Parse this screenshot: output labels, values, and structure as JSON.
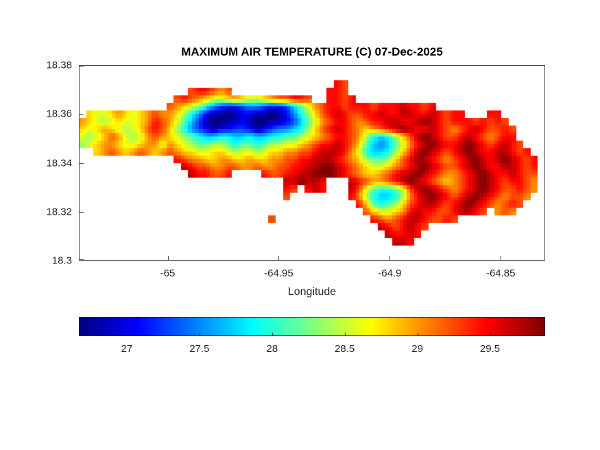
{
  "figure": {
    "background": "#ffffff",
    "axis_color": "#262626"
  },
  "chart_data": {
    "type": "heatmap",
    "title": "MAXIMUM AIR TEMPERATURE (C) 07-Dec-2025",
    "xlabel": "Longitude",
    "ylabel": "",
    "x_range": [
      -65.04,
      -64.83
    ],
    "y_range": [
      18.3,
      18.38
    ],
    "x_ticks": [
      -65,
      -64.95,
      -64.9,
      -64.85
    ],
    "x_tick_labels": [
      "-65",
      "-64.95",
      "-64.9",
      "-64.85"
    ],
    "y_ticks": [
      18.38,
      18.36,
      18.34,
      18.32,
      18.3
    ],
    "y_tick_labels": [
      "18.38",
      "18.36",
      "18.34",
      "18.32",
      "18.3"
    ],
    "colormap": "jet",
    "color_range": [
      26.67,
      29.88
    ],
    "colorbar": {
      "orientation": "horizontal",
      "ticks": [
        27,
        27.5,
        28,
        28.5,
        29,
        29.5
      ],
      "tick_labels": [
        "27",
        "27.5",
        "28",
        "28.5",
        "29",
        "29.5"
      ]
    },
    "grid_cols": 64,
    "grid_encoding": {
      "ocean_char": ".",
      "chars": "0123456789abcdef",
      "value_min": 26.6,
      "value_step": 0.22,
      "units": "C"
    },
    "grid_rows": [
      "................................................................",
      "................................................................",
      "...................................dc...........................",
      "...............cddcbc.............ddc...........................",
      ".............cdcba99aba99abccddc..ddcd..........................",
      "............cba98643223443223579bcddcdddcdddeddcd...............",
      ".a99aba9abcbba864211012211012468acdedccddeddeeddedcdd...dd......",
      "ba989a99abdcb97531001121001123579bcddcbcddeeddefedcdddcdcdc.....",
      "a9aba989acdca8643212233212344568acdedcbabcdefeddedcbcdedccdc....",
      "989acb989bcba9876556655655667789abcddcb86568acefedccdedcbcdd....",
      "89abba99abb9ba9877887677678899abcddedca754579bdefeddefedcdedc...",
      "..abcbabcbabcbaa99aa989989aabbccdeeedb965568acefedcdefeddeedcd..",
      ".............dcbbaabbaabaabbccddeeedcba8778acdfedcbcdefedefedcd.",
      "..............edccbbccbbcbbccddeeffedcba99abcdefedccdefeddeedcd.",
      "...............eddccd....dccddeefffedcbaabcdeefedcbbcdefeddedcc.",
      "............................eefeed...edcbbcdefedcbabcdefedcddcb.",
      "............................dc.ded...ec976679cefedcbcdefedccdcb.",
      "............................c........db865568bdefedcdefedcbccb..",
      "......................................da7678acdeedcdefedcbcdc...",
      ".......................................ca99abdeddccdeedc.bcb....",
      "..........................c.............dcbcdeedccdc............",
      ".........................................edcdedc................",
      "..........................................edded.................",
      "...........................................eed..................",
      "................................................................",
      "................................................................"
    ]
  }
}
